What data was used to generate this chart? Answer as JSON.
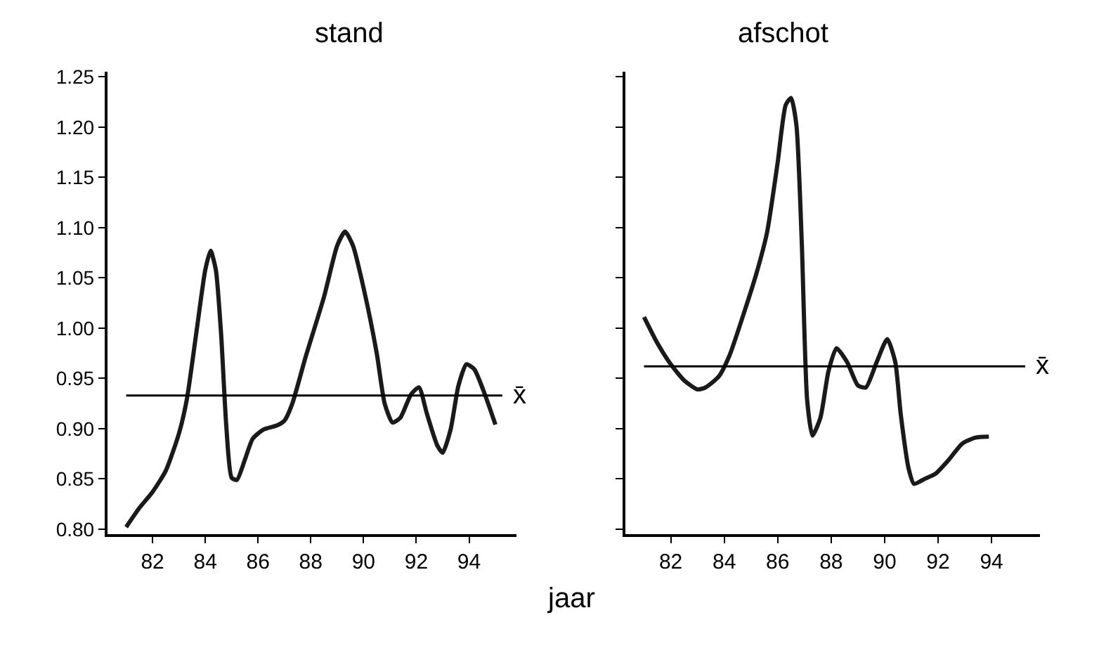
{
  "chart_data": [
    {
      "type": "line",
      "title": "stand",
      "xlabel": "jaar",
      "xlim": [
        80.3,
        95.8
      ],
      "xticks": [
        82,
        84,
        86,
        88,
        90,
        92,
        94
      ],
      "ylim": [
        0.795,
        1.255
      ],
      "yticks": [
        {
          "value": 0.8,
          "label": "0.80"
        },
        {
          "value": 0.85,
          "label": "0.85"
        },
        {
          "value": 0.9,
          "label": "0.90"
        },
        {
          "value": 0.95,
          "label": "0.95"
        },
        {
          "value": 1.0,
          "label": "1.00"
        },
        {
          "value": 1.05,
          "label": "1.05"
        },
        {
          "value": 1.1,
          "label": "1.10"
        },
        {
          "value": 1.15,
          "label": "1.15"
        },
        {
          "value": 1.2,
          "label": "1.20"
        },
        {
          "value": 1.25,
          "label": "1.25"
        }
      ],
      "marker": "none",
      "line_style": "solid",
      "ref_lines": [
        {
          "axis": "y",
          "value": 0.933,
          "label": "x̄",
          "color": "#000000"
        }
      ],
      "series": [
        {
          "color": "#1a1a1a",
          "x": [
            81.0,
            81.5,
            82.0,
            82.5,
            83.0,
            83.3,
            83.7,
            84.0,
            84.2,
            84.4,
            84.6,
            84.8,
            85.0,
            85.2,
            85.5,
            85.8,
            86.2,
            86.7,
            87.0,
            87.3,
            87.8,
            88.5,
            89.0,
            89.3,
            89.6,
            90.0,
            90.5,
            90.8,
            91.1,
            91.4,
            91.8,
            92.1,
            92.4,
            92.8,
            93.0,
            93.3,
            93.6,
            93.9,
            94.2,
            94.6,
            95.0
          ],
          "values": [
            0.802,
            0.821,
            0.837,
            0.858,
            0.895,
            0.929,
            1.003,
            1.058,
            1.077,
            1.058,
            0.994,
            0.901,
            0.851,
            0.849,
            0.869,
            0.89,
            0.899,
            0.903,
            0.908,
            0.925,
            0.971,
            1.031,
            1.082,
            1.096,
            1.082,
            1.04,
            0.975,
            0.925,
            0.906,
            0.911,
            0.934,
            0.941,
            0.915,
            0.883,
            0.876,
            0.899,
            0.943,
            0.964,
            0.959,
            0.934,
            0.904
          ]
        }
      ]
    },
    {
      "type": "line",
      "title": "afschot",
      "tick_labels": "x",
      "xlim": [
        80.3,
        95.8
      ],
      "xticks": [
        82,
        84,
        86,
        88,
        90,
        92,
        94
      ],
      "ylim": [
        0.795,
        1.255
      ],
      "yticks": [
        {
          "value": 0.8,
          "label": null
        },
        {
          "value": 0.85,
          "label": null
        },
        {
          "value": 0.9,
          "label": null
        },
        {
          "value": 0.95,
          "label": null
        },
        {
          "value": 1.0,
          "label": null
        },
        {
          "value": 1.05,
          "label": null
        },
        {
          "value": 1.1,
          "label": null
        },
        {
          "value": 1.15,
          "label": null
        },
        {
          "value": 1.2,
          "label": null
        },
        {
          "value": 1.25,
          "label": null
        }
      ],
      "marker": "none",
      "line_style": "solid",
      "ref_lines": [
        {
          "axis": "y",
          "value": 0.962,
          "label": "x̄",
          "color": "#000000"
        }
      ],
      "series": [
        {
          "color": "#1a1a1a",
          "x": [
            81.0,
            81.5,
            82.0,
            82.5,
            83.0,
            83.3,
            83.8,
            84.2,
            84.7,
            85.2,
            85.6,
            86.0,
            86.3,
            86.5,
            86.7,
            86.9,
            87.1,
            87.3,
            87.6,
            87.9,
            88.2,
            88.6,
            89.0,
            89.3,
            89.7,
            90.1,
            90.4,
            90.6,
            90.9,
            91.1,
            91.5,
            91.9,
            92.4,
            92.9,
            93.4,
            93.9
          ],
          "values": [
            1.011,
            0.985,
            0.964,
            0.948,
            0.939,
            0.941,
            0.952,
            0.973,
            1.012,
            1.054,
            1.095,
            1.165,
            1.222,
            1.229,
            1.202,
            1.086,
            0.929,
            0.893,
            0.911,
            0.957,
            0.98,
            0.966,
            0.943,
            0.941,
            0.966,
            0.989,
            0.966,
            0.915,
            0.86,
            0.845,
            0.85,
            0.855,
            0.869,
            0.885,
            0.891,
            0.892
          ]
        }
      ]
    }
  ]
}
